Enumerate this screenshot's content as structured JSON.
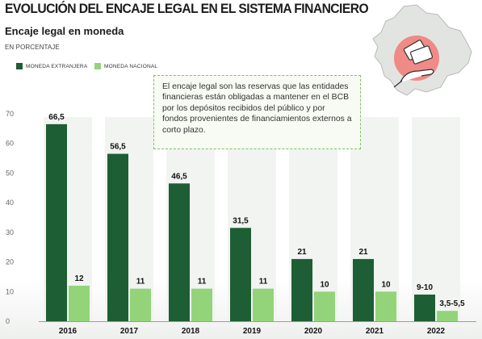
{
  "header": {
    "title": "EVOLUCIÓN DEL ENCAJE LEGAL EN EL SISTEMA FINANCIERO",
    "subtitle": "Encaje legal en moneda",
    "unit": "EN PORCENTAJE"
  },
  "legend": [
    {
      "label": "MONEDA EXTRANJERA",
      "color": "#1e5e34"
    },
    {
      "label": "MONEDA NACIONAL",
      "color": "#93d47a"
    }
  ],
  "note": {
    "text": "El encaje legal son las reservas que las entidades financieras están obligadas a mantener en el BCB por los depósitos recibidos del público y por fondos provenientes de financiamientos externos a corto plazo."
  },
  "illustration": {
    "icon": "bolivia-map-money-hand-icon"
  },
  "chart_data": {
    "type": "bar",
    "title": "EVOLUCIÓN DEL ENCAJE LEGAL EN EL SISTEMA FINANCIERO",
    "subtitle": "Encaje legal en moneda",
    "xlabel": "",
    "ylabel": "EN PORCENTAJE",
    "ylim": [
      0,
      70
    ],
    "yticks": [
      0,
      10,
      20,
      30,
      40,
      50,
      60,
      70
    ],
    "grid": false,
    "legend_position": "top-left",
    "categories": [
      "2016",
      "2017",
      "2018",
      "2019",
      "2020",
      "2021",
      "2022"
    ],
    "series": [
      {
        "name": "MONEDA EXTRANJERA",
        "color": "#1e5e34",
        "values": [
          66.5,
          56.5,
          46.5,
          31.5,
          21,
          21,
          9
        ],
        "labels": [
          "66,5",
          "56,5",
          "46,5",
          "31,5",
          "21",
          "21",
          "9-10"
        ]
      },
      {
        "name": "MONEDA NACIONAL",
        "color": "#93d47a",
        "values": [
          12,
          11,
          11,
          11,
          10,
          10,
          3.5
        ],
        "labels": [
          "12",
          "11",
          "11",
          "11",
          "10",
          "10",
          "3,5-5,5"
        ]
      }
    ]
  }
}
